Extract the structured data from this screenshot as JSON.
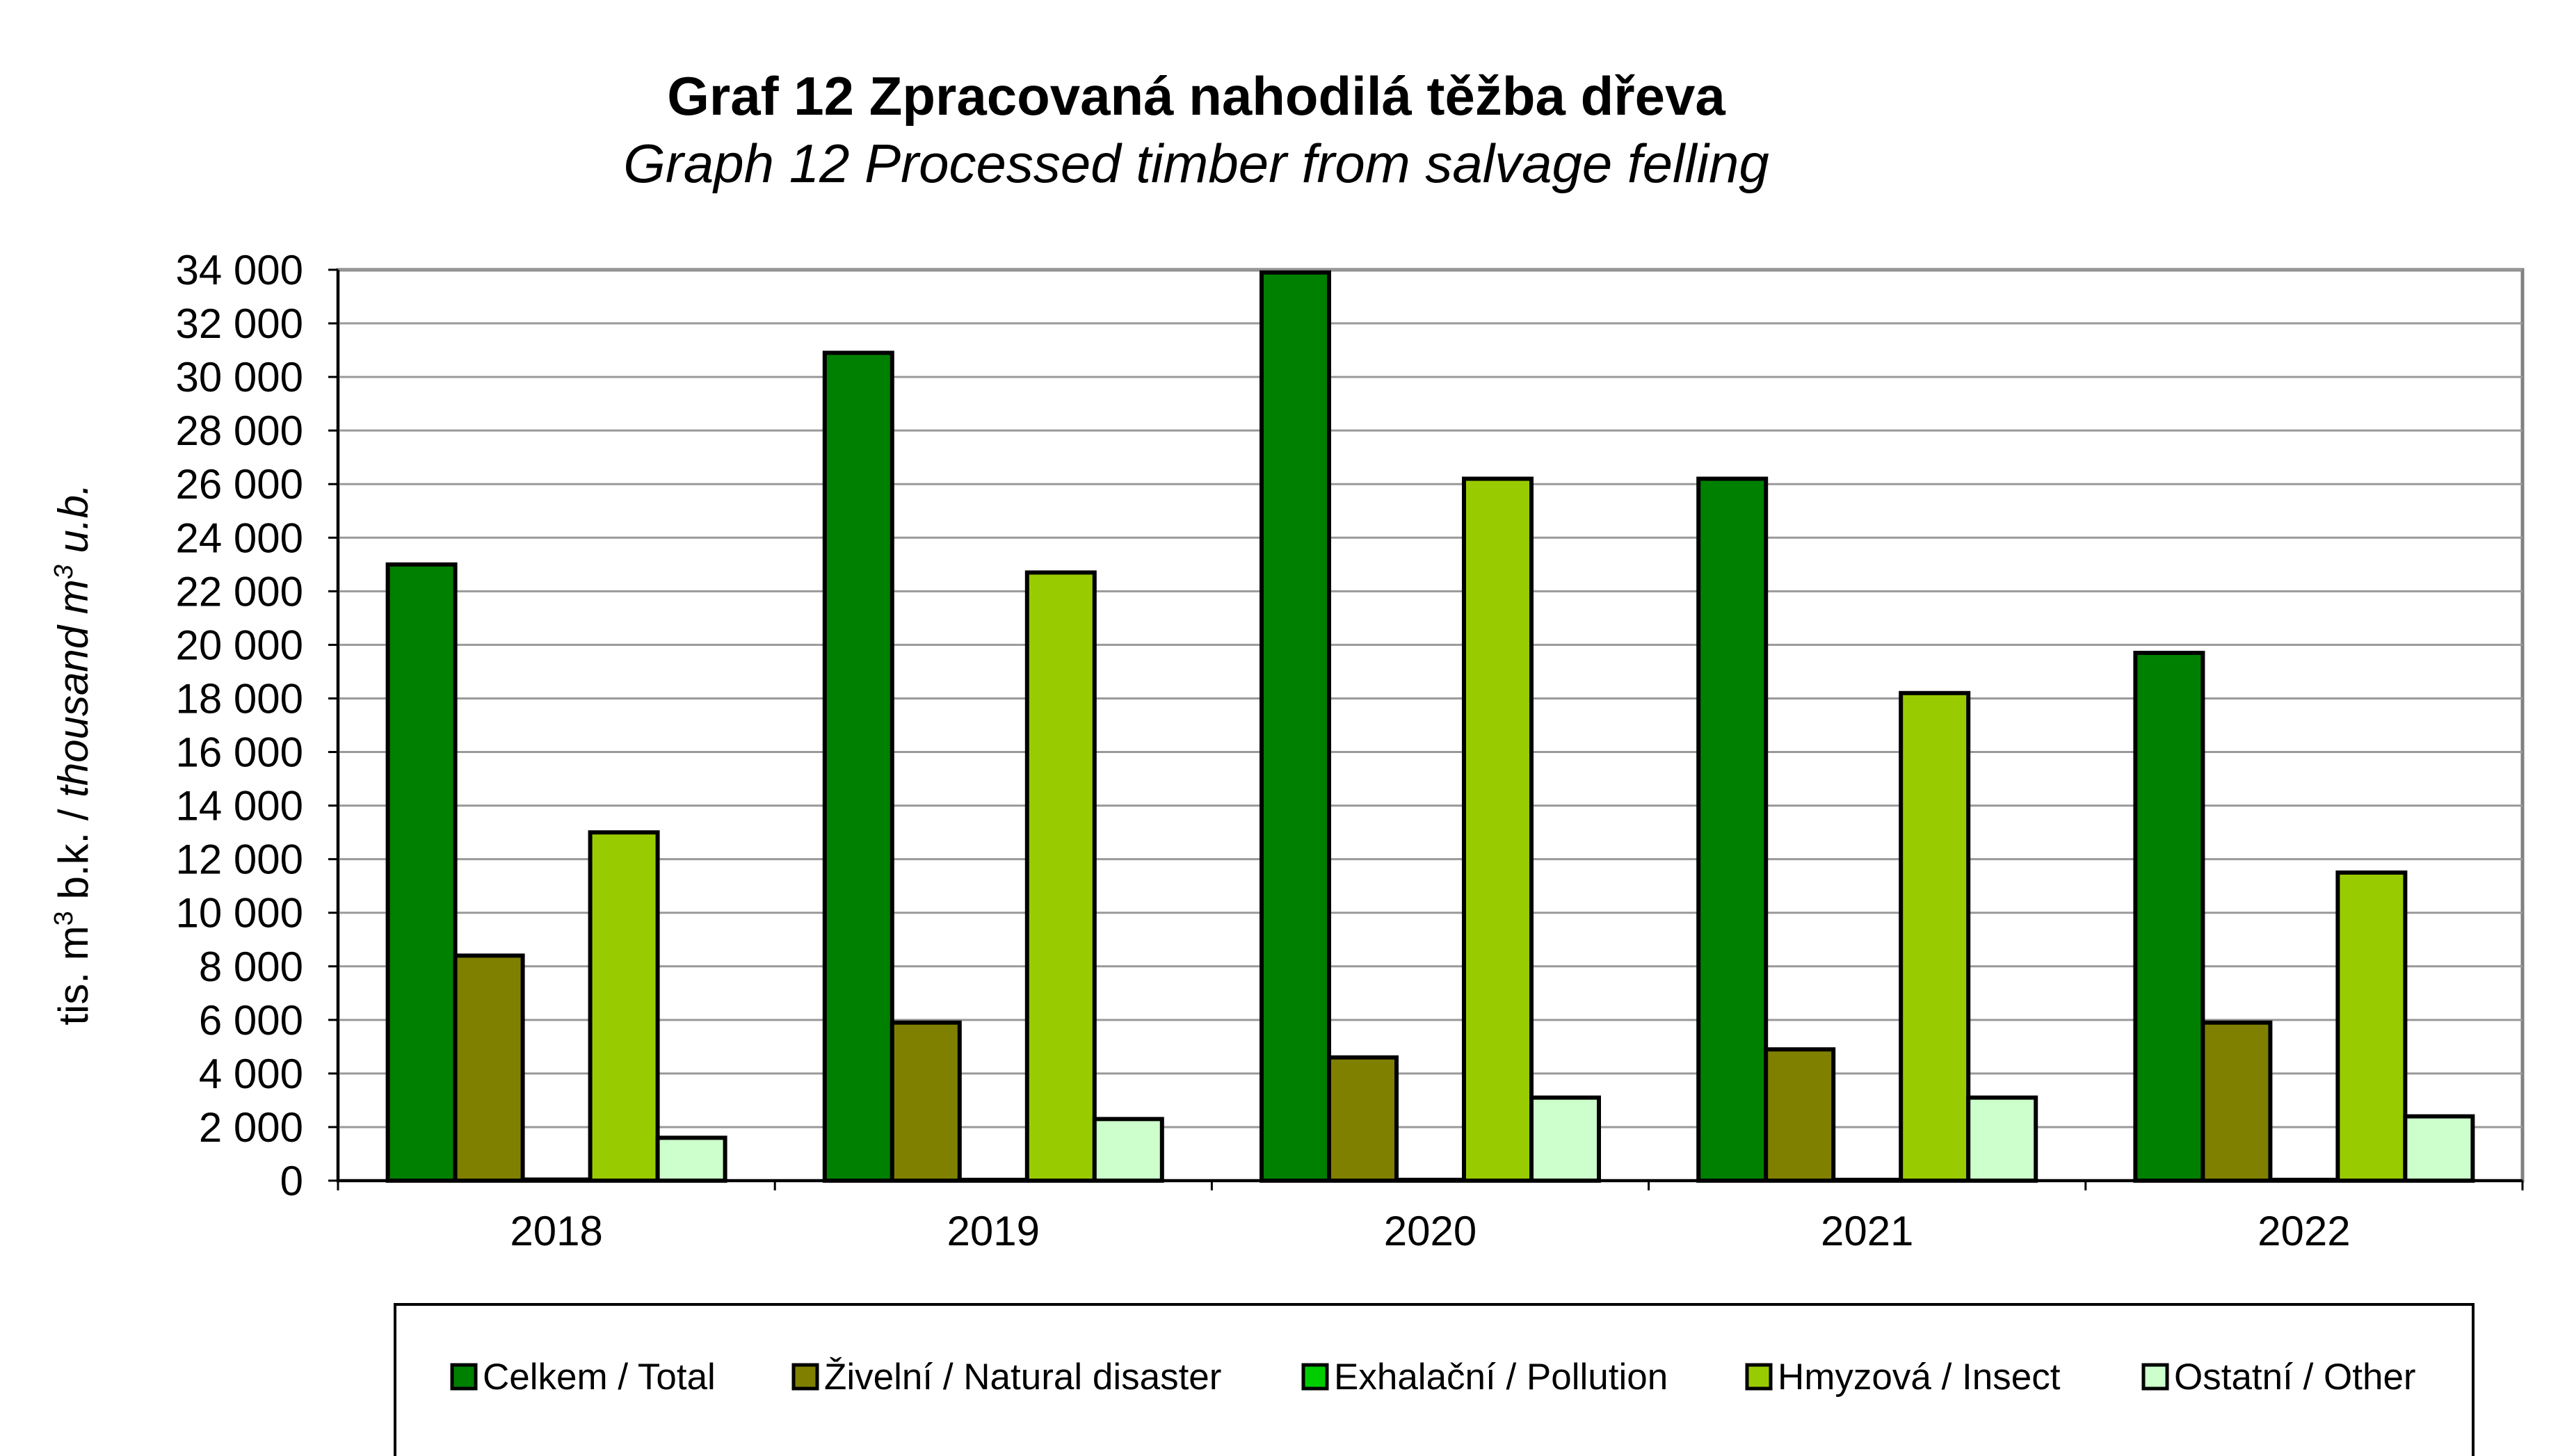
{
  "chart_data": {
    "type": "bar",
    "title": "Graf 12  Zpracovaná nahodilá těžba dřeva",
    "subtitle": "Graph 12  Processed timber from salvage felling",
    "ylabel_prefix": "tis. m",
    "ylabel_sup1": "3",
    "ylabel_mid": " b.k. / ",
    "ylabel_italic": "thousand m",
    "ylabel_sup2": "3",
    "ylabel_suffix": " u.b.",
    "ylim": [
      0,
      34000
    ],
    "yticks": [
      0,
      2000,
      4000,
      6000,
      8000,
      10000,
      12000,
      14000,
      16000,
      18000,
      20000,
      22000,
      24000,
      26000,
      28000,
      30000,
      32000,
      34000
    ],
    "ytick_labels": [
      "0",
      "2 000",
      "4 000",
      "6 000",
      "8 000",
      "10 000",
      "12 000",
      "14 000",
      "16 000",
      "18 000",
      "20 000",
      "22 000",
      "24 000",
      "26 000",
      "28 000",
      "30 000",
      "32 000",
      "34 000"
    ],
    "grid": true,
    "legend_position": "bottom",
    "categories": [
      "2018",
      "2019",
      "2020",
      "2021",
      "2022"
    ],
    "series": [
      {
        "name": "Celkem / Total",
        "color": "#008000",
        "values": [
          23000,
          30900,
          33900,
          26200,
          19700
        ]
      },
      {
        "name": "Živelní / Natural disaster",
        "color": "#808000",
        "values": [
          8400,
          5900,
          4600,
          4900,
          5900
        ]
      },
      {
        "name": "Exhalační / Pollution",
        "color": "#00cc00",
        "values": [
          40,
          30,
          30,
          30,
          30
        ]
      },
      {
        "name": "Hmyzová / Insect",
        "color": "#99cc00",
        "values": [
          13000,
          22700,
          26200,
          18200,
          11500
        ]
      },
      {
        "name": "Ostatní / Other",
        "color": "#ccffcc",
        "values": [
          1600,
          2300,
          3100,
          3100,
          2400
        ]
      }
    ]
  }
}
